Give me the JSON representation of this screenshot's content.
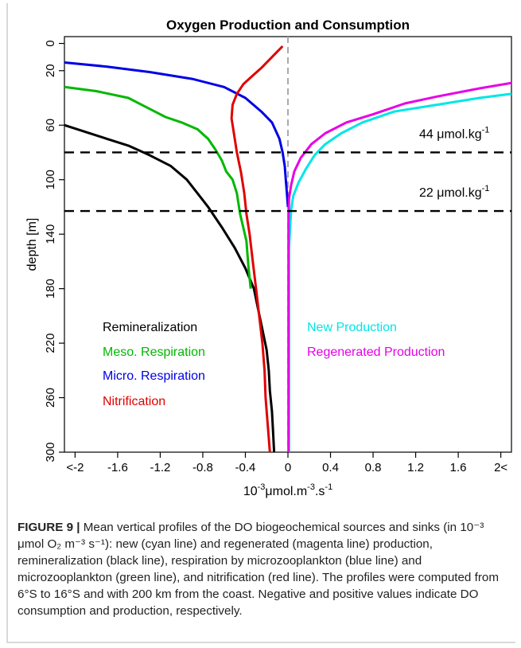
{
  "chart_data": {
    "type": "line",
    "title": "Oxygen Production and Consumption",
    "xlabel": "10^-3 μmol.m^-3.s^-1",
    "ylabel": "depth [m]",
    "xlim": [
      -2.1,
      2.1
    ],
    "ylim": [
      300,
      -5
    ],
    "y_inverted": true,
    "xticks": [
      "<-2",
      "-1.6",
      "-1.2",
      "-0.8",
      "-0.4",
      "0",
      "0.4",
      "0.8",
      "1.2",
      "1.6",
      "2<"
    ],
    "xtick_values": [
      -2,
      -1.6,
      -1.2,
      -0.8,
      -0.4,
      0,
      0.4,
      0.8,
      1.2,
      1.6,
      2
    ],
    "yticks": [
      0,
      20,
      60,
      100,
      140,
      180,
      220,
      260,
      300
    ],
    "grid": false,
    "series": [
      {
        "name": "Remineralization",
        "color": "#000000",
        "points": [
          [
            -2.1,
            60
          ],
          [
            -1.9,
            65
          ],
          [
            -1.7,
            70
          ],
          [
            -1.5,
            75
          ],
          [
            -1.3,
            82
          ],
          [
            -1.1,
            90
          ],
          [
            -0.95,
            100
          ],
          [
            -0.85,
            110
          ],
          [
            -0.75,
            120
          ],
          [
            -0.62,
            135
          ],
          [
            -0.5,
            150
          ],
          [
            -0.4,
            165
          ],
          [
            -0.32,
            180
          ],
          [
            -0.28,
            195
          ],
          [
            -0.24,
            210
          ],
          [
            -0.2,
            225
          ],
          [
            -0.18,
            240
          ],
          [
            -0.17,
            255
          ],
          [
            -0.15,
            270
          ],
          [
            -0.14,
            285
          ],
          [
            -0.13,
            300
          ]
        ]
      },
      {
        "name": "Meso. Respiration",
        "color": "#00b800",
        "points": [
          [
            -2.1,
            32
          ],
          [
            -1.8,
            35
          ],
          [
            -1.5,
            40
          ],
          [
            -1.3,
            48
          ],
          [
            -1.15,
            54
          ],
          [
            -1.0,
            58
          ],
          [
            -0.85,
            63
          ],
          [
            -0.75,
            70
          ],
          [
            -0.68,
            78
          ],
          [
            -0.62,
            86
          ],
          [
            -0.58,
            94
          ],
          [
            -0.52,
            100
          ],
          [
            -0.48,
            110
          ],
          [
            -0.45,
            125
          ],
          [
            -0.42,
            135
          ],
          [
            -0.39,
            145
          ],
          [
            -0.37,
            165
          ],
          [
            -0.35,
            180
          ]
        ]
      },
      {
        "name": "Micro. Respiration",
        "color": "#0000e6",
        "points": [
          [
            -2.1,
            14
          ],
          [
            -1.7,
            17
          ],
          [
            -1.3,
            21
          ],
          [
            -0.9,
            26
          ],
          [
            -0.6,
            32
          ],
          [
            -0.4,
            40
          ],
          [
            -0.25,
            50
          ],
          [
            -0.15,
            58
          ],
          [
            -0.08,
            70
          ],
          [
            -0.05,
            80
          ],
          [
            -0.03,
            90
          ],
          [
            -0.02,
            100
          ],
          [
            -0.01,
            110
          ],
          [
            0,
            120
          ]
        ]
      },
      {
        "name": "Nitrification",
        "color": "#e00000",
        "points": [
          [
            -0.05,
            2
          ],
          [
            -0.15,
            10
          ],
          [
            -0.25,
            18
          ],
          [
            -0.35,
            25
          ],
          [
            -0.42,
            30
          ],
          [
            -0.48,
            37
          ],
          [
            -0.52,
            45
          ],
          [
            -0.53,
            55
          ],
          [
            -0.51,
            65
          ],
          [
            -0.48,
            80
          ],
          [
            -0.44,
            95
          ],
          [
            -0.41,
            110
          ],
          [
            -0.39,
            125
          ],
          [
            -0.36,
            140
          ],
          [
            -0.33,
            160
          ],
          [
            -0.3,
            180
          ],
          [
            -0.27,
            200
          ],
          [
            -0.24,
            220
          ],
          [
            -0.22,
            240
          ],
          [
            -0.21,
            260
          ],
          [
            -0.19,
            280
          ],
          [
            -0.17,
            300
          ]
        ]
      },
      {
        "name": "New Production",
        "color": "#00e6e6",
        "points": [
          [
            2.1,
            37
          ],
          [
            1.8,
            40
          ],
          [
            1.4,
            45
          ],
          [
            1.0,
            50
          ],
          [
            0.7,
            58
          ],
          [
            0.5,
            66
          ],
          [
            0.35,
            74
          ],
          [
            0.25,
            82
          ],
          [
            0.17,
            92
          ],
          [
            0.1,
            102
          ],
          [
            0.05,
            112
          ],
          [
            0.03,
            122
          ],
          [
            0.02,
            135
          ],
          [
            0.01,
            150
          ],
          [
            0.01,
            300
          ]
        ]
      },
      {
        "name": "Regenerated Production",
        "color": "#e600e6",
        "points": [
          [
            2.1,
            29
          ],
          [
            1.8,
            33
          ],
          [
            1.4,
            39
          ],
          [
            1.1,
            44
          ],
          [
            0.8,
            52
          ],
          [
            0.55,
            58
          ],
          [
            0.35,
            66
          ],
          [
            0.22,
            74
          ],
          [
            0.12,
            84
          ],
          [
            0.06,
            94
          ],
          [
            0.03,
            104
          ],
          [
            0.01,
            114
          ],
          [
            0.005,
            130
          ],
          [
            0.005,
            300
          ]
        ]
      }
    ],
    "hlines": [
      {
        "y": 80,
        "label": "44 μmol.kg^-1"
      },
      {
        "y": 123,
        "label": "22 μmol.kg^-1"
      }
    ],
    "vline": 0,
    "legend": [
      {
        "text": "Remineralization",
        "color": "#000000"
      },
      {
        "text": "Meso. Respiration",
        "color": "#00b800"
      },
      {
        "text": "Micro. Respiration",
        "color": "#0000e6"
      },
      {
        "text": "Nitrification",
        "color": "#e00000"
      },
      {
        "text": "New Production",
        "color": "#00e6e6"
      },
      {
        "text": "Regenerated Production",
        "color": "#e600e6"
      }
    ]
  },
  "caption": {
    "label": "FIGURE 9 |",
    "text": "Mean vertical profiles of the DO biogeochemical sources and sinks (in 10⁻³ μmol O₂ m⁻³ s⁻¹): new (cyan line) and regenerated (magenta line) production, remineralization (black line), respiration by microzooplankton (blue line) and microzooplankton (green line), and nitrification (red line). The profiles were computed from 6°S to 16°S and with 200 km from the coast. Negative and positive values indicate DO consumption and production, respectively."
  }
}
